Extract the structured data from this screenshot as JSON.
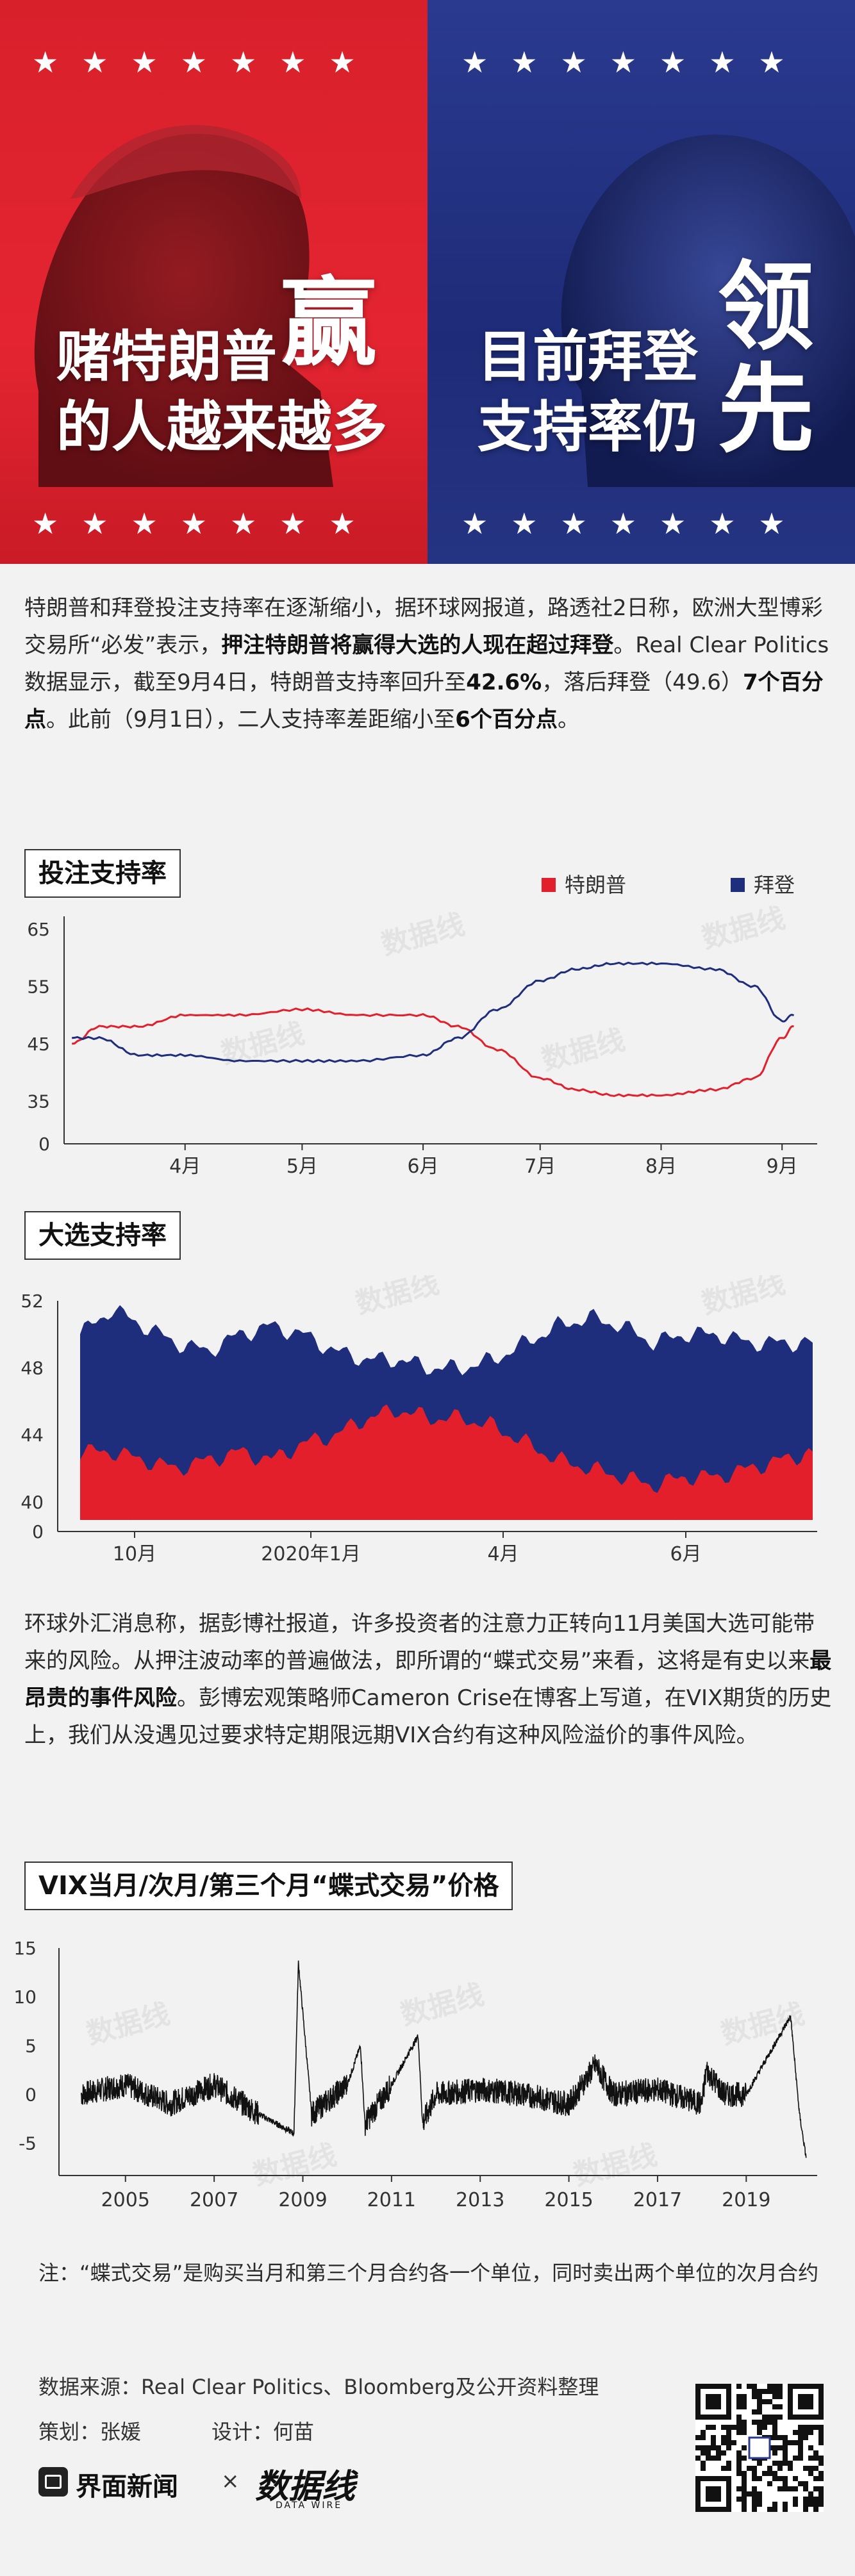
{
  "header": {
    "left_headline_line1": "赌特朗普",
    "left_headline_big": "赢",
    "left_headline_line2": "的人越来越多",
    "right_headline_line1": "目前拜登",
    "right_headline_line2": "支持率仍",
    "right_headline_big1": "领",
    "right_headline_big2": "先",
    "stars_top_left": "★★★★★★★",
    "stars_top_right": "★★★★★★★",
    "stars_bottom_left": "★★★★★★★",
    "stars_bottom_right": "★★★★★★★",
    "colors": {
      "red": "#e21f2b",
      "blue": "#1f2d7d"
    }
  },
  "intro": {
    "text1": "特朗普和拜登投注支持率在逐渐缩小，据环球网报道，路透社2日称，欧洲大型博彩交易所“必发”表示，",
    "bold1": "押注特朗普将赢得大选的人现在超过拜登",
    "text2": "。Real Clear Politics数据显示，截至9月4日，特朗普支持率回升至",
    "bold2": "42.6%",
    "text3": "，落后拜登（49.6）",
    "bold3": "7个百分点",
    "text4": "。此前（9月1日），二人支持率差距缩小至",
    "bold4": "6个百分点",
    "text5": "。"
  },
  "watermark": "数据线",
  "chart1_title": "投注支持率",
  "chart2_title": "大选支持率",
  "chart3_title": "VIX当月/次月/第三个月“蝶式交易”价格",
  "middle": {
    "text1": "环球外汇消息称，据彭博社报道，许多投资者的注意力正转向11月美国大选可能带来的风险。从押注波动率的普遍做法，即所谓的“蝶式交易”来看，这将是有史以来",
    "bold1": "最昂贵的事件风险",
    "text2": "。彭博宏观策略师Cameron Crise在博客上写道，在VIX期货的历史上，我们从没遇见过要求特定期限远期VIX合约有这种风险溢价的事件风险。"
  },
  "note": "注：“蝶式交易”是购买当月和第三个月合约各一个单位，同时卖出两个单位的次月合约",
  "footer": {
    "source": "数据来源：Real Clear Politics、Bloomberg及公开资料整理",
    "planner": "策划：张媛",
    "designer": "设计：何苗",
    "brand1": "界面新闻",
    "times": "×",
    "brand2": "数据线",
    "brand2_sub": "DATA WIRE"
  },
  "chart_data": [
    {
      "type": "line",
      "title": "投注支持率",
      "x_tick_labels": [
        "4月",
        "5月",
        "6月",
        "7月",
        "8月",
        "9月"
      ],
      "y_tick_labels": [
        "0",
        "35",
        "45",
        "55",
        "65"
      ],
      "ylim": [
        0,
        65
      ],
      "legend_position": "top-right",
      "series": [
        {
          "name": "特朗普",
          "color": "#e21f2b",
          "x": [
            "3/3",
            "3/10",
            "3/20",
            "4/1",
            "4/15",
            "5/1",
            "5/15",
            "6/1",
            "6/10",
            "6/20",
            "7/1",
            "7/10",
            "7/20",
            "8/1",
            "8/15",
            "8/25",
            "9/1",
            "9/4"
          ],
          "values": [
            45,
            48,
            48,
            50,
            50,
            51,
            50,
            50,
            48,
            44,
            39,
            37,
            36,
            36,
            37,
            39,
            46,
            48
          ]
        },
        {
          "name": "拜登",
          "color": "#1f2d7d",
          "x": [
            "3/3",
            "3/10",
            "3/20",
            "4/1",
            "4/15",
            "5/1",
            "5/15",
            "6/1",
            "6/10",
            "6/20",
            "7/1",
            "7/10",
            "7/20",
            "8/1",
            "8/15",
            "8/25",
            "9/1",
            "9/4"
          ],
          "values": [
            46,
            46,
            43,
            43,
            42,
            42,
            42,
            43,
            46,
            51,
            56,
            58,
            59,
            59,
            58,
            55,
            49,
            50
          ]
        }
      ]
    },
    {
      "type": "area",
      "title": "大选支持率",
      "x_tick_labels": [
        "10月",
        "2020年1月",
        "4月",
        "6月"
      ],
      "y_tick_labels": [
        "0",
        "40",
        "44",
        "48",
        "52"
      ],
      "ylim": [
        0,
        52
      ],
      "series": [
        {
          "name": "特朗普",
          "color": "#e21f2b",
          "values": [
            43,
            43,
            42.5,
            42,
            42.5,
            43,
            42.5,
            43.5,
            44,
            45,
            45.5,
            45,
            45,
            44.5,
            43.5,
            42.5,
            42,
            41.5,
            41,
            41.5,
            41.5,
            42,
            42.5,
            43
          ]
        },
        {
          "name": "拜登",
          "color": "#1f2d7d",
          "values": [
            50,
            51.5,
            50.5,
            49.5,
            49,
            50,
            50.5,
            50,
            49,
            48.5,
            48.5,
            48,
            48,
            48.5,
            49.5,
            50.5,
            51,
            50.5,
            49.5,
            50,
            50,
            49.5,
            49.5,
            49.5
          ]
        }
      ]
    },
    {
      "type": "line",
      "title": "VIX当月/次月/第三个月“蝶式交易”价格",
      "x_tick_labels": [
        "2005",
        "2007",
        "2009",
        "2011",
        "2013",
        "2015",
        "2017",
        "2019"
      ],
      "y_tick_labels": [
        "-5",
        "0",
        "5",
        "10",
        "15"
      ],
      "ylim": [
        -7,
        15
      ],
      "series": [
        {
          "name": "",
          "color": "#111111",
          "x": [
            2004.0,
            2005.0,
            2006.0,
            2007.0,
            2008.0,
            2008.8,
            2008.9,
            2009.2,
            2010.0,
            2010.3,
            2010.4,
            2011.0,
            2011.6,
            2011.7,
            2012.0,
            2013.0,
            2014.0,
            2015.0,
            2015.6,
            2016.0,
            2017.0,
            2018.0,
            2018.1,
            2018.5,
            2019.0,
            2020.0,
            2020.2,
            2020.35
          ],
          "values": [
            0,
            1,
            -1,
            1,
            -2,
            -4,
            13.5,
            -2,
            1,
            5,
            -3,
            1,
            6,
            -3,
            0,
            0.5,
            0,
            -1,
            3,
            0,
            0.5,
            -1,
            2.5,
            0,
            0,
            8,
            -2,
            -6.5
          ]
        }
      ]
    }
  ]
}
